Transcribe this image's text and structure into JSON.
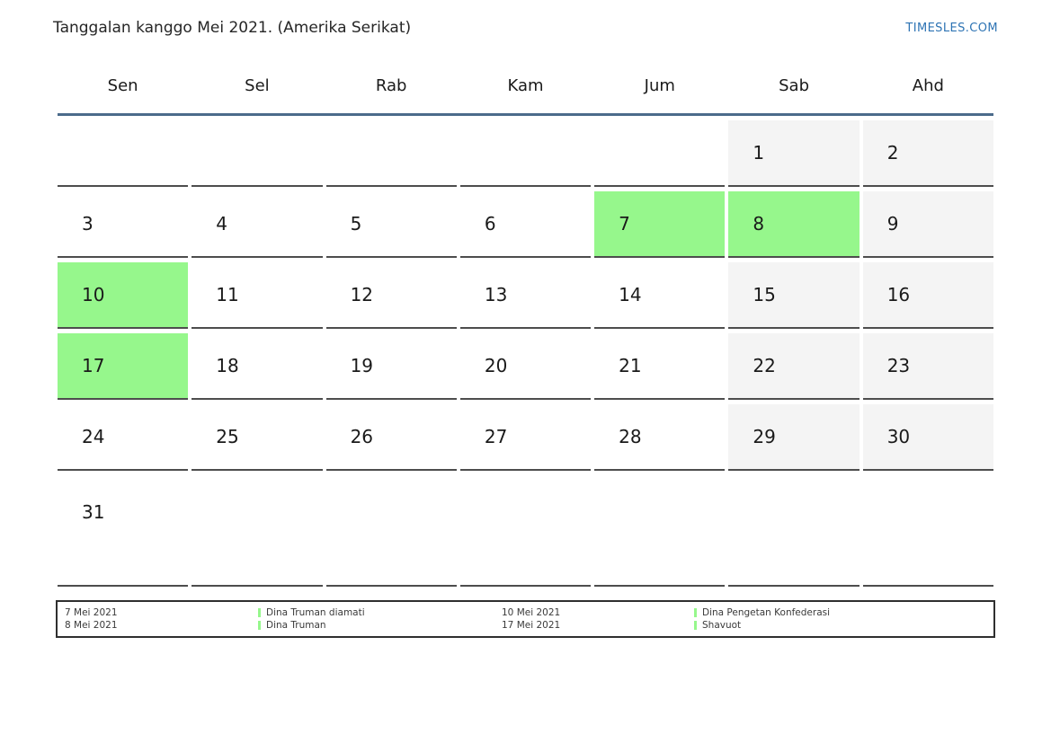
{
  "page": {
    "title": "Tanggalan kanggo Mei 2021. (Amerika Serikat)",
    "brand": "TIMESLES.COM"
  },
  "calendar": {
    "weekdays": [
      "Sen",
      "Sel",
      "Rab",
      "Kam",
      "Jum",
      "Sab",
      "Ahd"
    ],
    "cells": [
      "",
      "",
      "",
      "",
      "",
      "1",
      "2",
      "3",
      "4",
      "5",
      "6",
      "7",
      "8",
      "9",
      "10",
      "11",
      "12",
      "13",
      "14",
      "15",
      "16",
      "17",
      "18",
      "19",
      "20",
      "21",
      "22",
      "23",
      "24",
      "25",
      "26",
      "27",
      "28",
      "29",
      "30",
      "31",
      "",
      "",
      "",
      "",
      "",
      ""
    ],
    "highlighted_days": [
      7,
      8,
      10,
      17
    ],
    "weekend_days": [
      1,
      2,
      9,
      15,
      16,
      22,
      23,
      29,
      30
    ]
  },
  "legend": {
    "column1_dates": [
      "7 Mei 2021",
      "8 Mei 2021"
    ],
    "column2_events": [
      "Dina Truman diamati",
      "Dina Truman"
    ],
    "column3_dates": [
      "10 Mei 2021",
      "17 Mei 2021"
    ],
    "column4_events": [
      "Dina Pengetan Konfederasi",
      "Shavuot"
    ]
  },
  "colors": {
    "highlight_green": "#96f78c",
    "weekend_gray": "#f4f4f4",
    "header_line_blue": "#4b6b8b",
    "cell_border_gray": "#4d4d4d",
    "brand_blue": "#2e74b4"
  }
}
